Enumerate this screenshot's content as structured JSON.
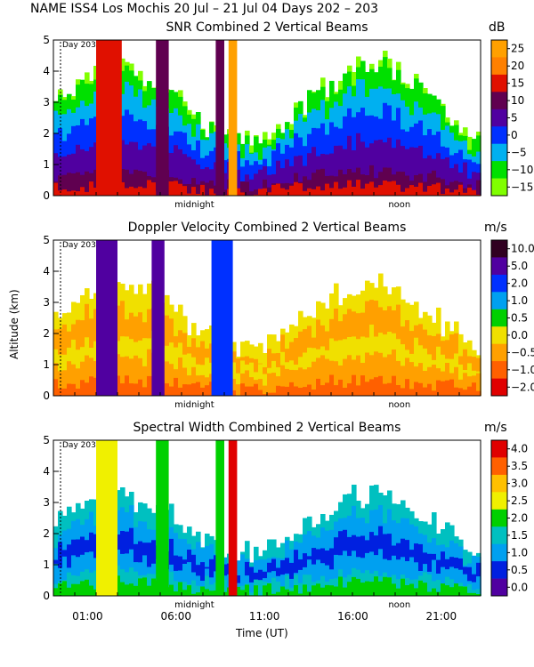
{
  "header": {
    "title": "NAME ISS4 Los Mochis  20 Jul – 21 Jul 04 Days 202 – 203"
  },
  "axes": {
    "ylabel": "Altitude (km)",
    "xlabel": "Time (UT)"
  },
  "chart_data": [
    {
      "type": "heatmap",
      "title": "SNR Combined 2 Vertical Beams",
      "unit": "dB",
      "ylim": [
        0,
        5
      ],
      "yticks": [
        "0",
        "1",
        "2",
        "3",
        "4",
        "5"
      ],
      "day_marker": "Day 203",
      "x_markers": [
        "midnight",
        "noon"
      ],
      "colorbar": {
        "labels": [
          "25",
          "20",
          "15",
          "10",
          "5",
          "0",
          "−5",
          "−10",
          "−15"
        ],
        "colors": [
          "#ffa000",
          "#ff8000",
          "#e01000",
          "#600050",
          "#5000a0",
          "#0030ff",
          "#00b0f0",
          "#00e000",
          "#80ff00"
        ]
      }
    },
    {
      "type": "heatmap",
      "title": "Doppler Velocity Combined 2 Vertical Beams",
      "unit": "m/s",
      "ylim": [
        0,
        5
      ],
      "yticks": [
        "0",
        "1",
        "2",
        "3",
        "4",
        "5"
      ],
      "day_marker": "Day 203",
      "x_markers": [
        "midnight",
        "noon"
      ],
      "colorbar": {
        "labels": [
          "10.0",
          "5.0",
          "2.0",
          "1.0",
          "0.5",
          "0.0",
          "−0.5",
          "−1.0",
          "−2.0"
        ],
        "colors": [
          "#300020",
          "#5000a0",
          "#0030ff",
          "#00a0f0",
          "#00d000",
          "#f0e000",
          "#ffa000",
          "#ff6000",
          "#e00000"
        ]
      }
    },
    {
      "type": "heatmap",
      "title": "Spectral Width Combined 2 Vertical Beams",
      "unit": "m/s",
      "ylim": [
        0,
        5
      ],
      "yticks": [
        "0",
        "1",
        "2",
        "3",
        "4",
        "5"
      ],
      "day_marker": "Day 203",
      "x_markers": [
        "midnight",
        "noon"
      ],
      "xticks": [
        "01:00",
        "06:00",
        "11:00",
        "16:00",
        "21:00"
      ],
      "colorbar": {
        "labels": [
          "4.0",
          "3.5",
          "3.0",
          "2.5",
          "2.0",
          "1.5",
          "1.0",
          "0.5",
          "0.0"
        ],
        "colors": [
          "#e00000",
          "#ff6000",
          "#ffc000",
          "#f0f000",
          "#00d000",
          "#00c0c0",
          "#00a0f0",
          "#0020e0",
          "#5000a0"
        ]
      }
    }
  ]
}
